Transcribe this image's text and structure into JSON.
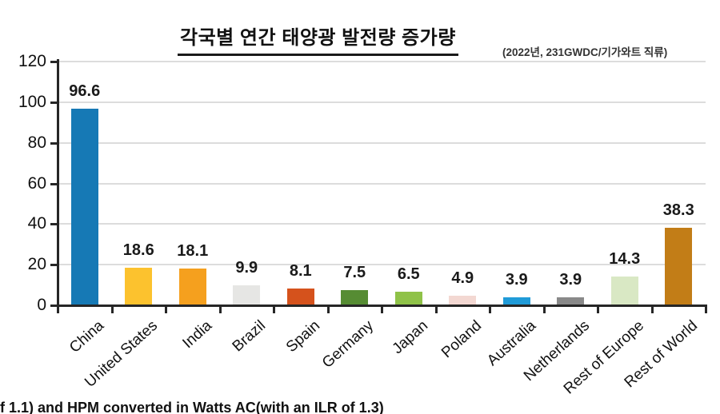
{
  "chart_data": {
    "type": "bar",
    "title": "각국별 연간 태양광 발전량 증가량",
    "subtitle": "(2022년, 231GWDC/기가와트 직류)",
    "categories": [
      "China",
      "United States",
      "India",
      "Brazil",
      "Spain",
      "Germany",
      "Japan",
      "Poland",
      "Australia",
      "Netherlands",
      "Rest of Europe",
      "Rest of World"
    ],
    "values": [
      96.6,
      18.6,
      18.1,
      9.9,
      8.1,
      7.5,
      6.5,
      4.9,
      3.9,
      3.9,
      14.3,
      38.3
    ],
    "bar_colors": [
      "#1679b5",
      "#fcc22e",
      "#f5a01e",
      "#e6e6e4",
      "#d5521c",
      "#568c33",
      "#8fc248",
      "#f3d8d2",
      "#209bd8",
      "#898989",
      "#d9e8c4",
      "#c27d17"
    ],
    "xlabel": "",
    "ylabel": "",
    "ylim": [
      0,
      120
    ],
    "yticks": [
      0,
      20,
      40,
      60,
      80,
      100,
      120
    ],
    "grid": "horizontal",
    "legend": "none",
    "value_labels_shown": true,
    "footnote": "f 1.1) and HPM converted in Watts AC(with an ILR of 1.3)",
    "axis_color": "#262626",
    "grid_color": "#dcdcdc",
    "text_color": "#111111"
  }
}
